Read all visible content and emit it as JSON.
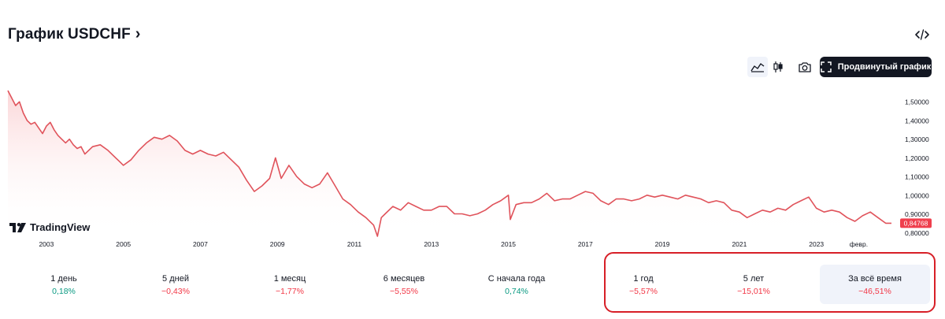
{
  "header": {
    "title": "График USDCHF",
    "chevron": "›"
  },
  "toolbar": {
    "advanced_label": "Продвинутый график",
    "icons": [
      "area-chart-icon",
      "candles-icon",
      "camera-icon",
      "embed-code-icon",
      "fullscreen-icon"
    ]
  },
  "logo": {
    "text": "TradingView"
  },
  "colors": {
    "line": "#e0535b",
    "fill_top": "#fbd4d6",
    "price_tag": "#ef3f4d",
    "positive": "#089981",
    "negative": "#f23645",
    "highlight": "#d71f27"
  },
  "chart_data": {
    "type": "area",
    "symbol": "USDCHF",
    "last_price": "0,84768",
    "x_ticks": [
      "2003",
      "2005",
      "2007",
      "2009",
      "2011",
      "2013",
      "2015",
      "2017",
      "2019",
      "2021",
      "2023",
      "февр."
    ],
    "y_ticks": [
      "1,50000",
      "1,40000",
      "1,30000",
      "1,20000",
      "1,10000",
      "1,00000",
      "0,90000",
      "0,80000"
    ],
    "ylim": [
      0.78,
      1.56
    ],
    "x": [
      2002.0,
      2002.1,
      2002.2,
      2002.3,
      2002.4,
      2002.5,
      2002.6,
      2002.7,
      2002.8,
      2002.9,
      2003.0,
      2003.1,
      2003.2,
      2003.3,
      2003.4,
      2003.5,
      2003.6,
      2003.7,
      2003.8,
      2003.9,
      2004.0,
      2004.2,
      2004.4,
      2004.6,
      2004.8,
      2004.9,
      2005.0,
      2005.2,
      2005.4,
      2005.6,
      2005.8,
      2006.0,
      2006.2,
      2006.4,
      2006.6,
      2006.8,
      2007.0,
      2007.2,
      2007.4,
      2007.6,
      2007.8,
      2008.0,
      2008.2,
      2008.4,
      2008.6,
      2008.8,
      2008.95,
      2009.1,
      2009.3,
      2009.5,
      2009.7,
      2009.9,
      2010.1,
      2010.3,
      2010.5,
      2010.7,
      2010.9,
      2011.1,
      2011.3,
      2011.5,
      2011.6,
      2011.7,
      2011.8,
      2012.0,
      2012.2,
      2012.4,
      2012.6,
      2012.8,
      2013.0,
      2013.2,
      2013.4,
      2013.6,
      2013.8,
      2014.0,
      2014.2,
      2014.4,
      2014.6,
      2014.8,
      2015.0,
      2015.05,
      2015.2,
      2015.4,
      2015.6,
      2015.8,
      2016.0,
      2016.2,
      2016.4,
      2016.6,
      2016.8,
      2017.0,
      2017.2,
      2017.4,
      2017.6,
      2017.8,
      2018.0,
      2018.2,
      2018.4,
      2018.6,
      2018.8,
      2019.0,
      2019.2,
      2019.4,
      2019.6,
      2019.8,
      2020.0,
      2020.2,
      2020.4,
      2020.6,
      2020.8,
      2021.0,
      2021.2,
      2021.4,
      2021.6,
      2021.8,
      2022.0,
      2022.2,
      2022.4,
      2022.6,
      2022.8,
      2023.0,
      2023.2,
      2023.4,
      2023.6,
      2023.8,
      2024.0,
      2024.2,
      2024.4,
      2024.6,
      2024.8,
      2024.95
    ],
    "y": [
      1.56,
      1.52,
      1.48,
      1.5,
      1.44,
      1.4,
      1.38,
      1.39,
      1.36,
      1.33,
      1.37,
      1.39,
      1.35,
      1.32,
      1.3,
      1.28,
      1.3,
      1.27,
      1.25,
      1.26,
      1.22,
      1.26,
      1.27,
      1.24,
      1.2,
      1.18,
      1.16,
      1.19,
      1.24,
      1.28,
      1.31,
      1.3,
      1.32,
      1.29,
      1.24,
      1.22,
      1.24,
      1.22,
      1.21,
      1.23,
      1.19,
      1.15,
      1.08,
      1.02,
      1.05,
      1.09,
      1.2,
      1.09,
      1.16,
      1.1,
      1.06,
      1.04,
      1.06,
      1.12,
      1.05,
      0.98,
      0.95,
      0.91,
      0.88,
      0.84,
      0.78,
      0.88,
      0.9,
      0.94,
      0.92,
      0.96,
      0.94,
      0.92,
      0.92,
      0.94,
      0.94,
      0.9,
      0.9,
      0.89,
      0.9,
      0.92,
      0.95,
      0.97,
      1.0,
      0.87,
      0.95,
      0.96,
      0.96,
      0.98,
      1.01,
      0.97,
      0.98,
      0.98,
      1.0,
      1.02,
      1.01,
      0.97,
      0.95,
      0.98,
      0.98,
      0.97,
      0.98,
      1.0,
      0.99,
      1.0,
      0.99,
      0.98,
      1.0,
      0.99,
      0.98,
      0.96,
      0.97,
      0.96,
      0.92,
      0.91,
      0.88,
      0.9,
      0.92,
      0.91,
      0.93,
      0.92,
      0.95,
      0.97,
      0.99,
      0.93,
      0.91,
      0.92,
      0.91,
      0.88,
      0.86,
      0.89,
      0.91,
      0.88,
      0.85,
      0.85
    ]
  },
  "periods": [
    {
      "label": "1 день",
      "value": "0,18%",
      "trend": "pos"
    },
    {
      "label": "5 дней",
      "value": "−0,43%",
      "trend": "neg"
    },
    {
      "label": "1 месяц",
      "value": "−1,77%",
      "trend": "neg"
    },
    {
      "label": "6 месяцев",
      "value": "−5,55%",
      "trend": "neg"
    },
    {
      "label": "С начала года",
      "value": "0,74%",
      "trend": "pos"
    },
    {
      "label": "1 год",
      "value": "−5,57%",
      "trend": "neg"
    },
    {
      "label": "5 лет",
      "value": "−15,01%",
      "trend": "neg"
    },
    {
      "label": "За всё время",
      "value": "−46,51%",
      "trend": "neg",
      "active": true
    }
  ]
}
